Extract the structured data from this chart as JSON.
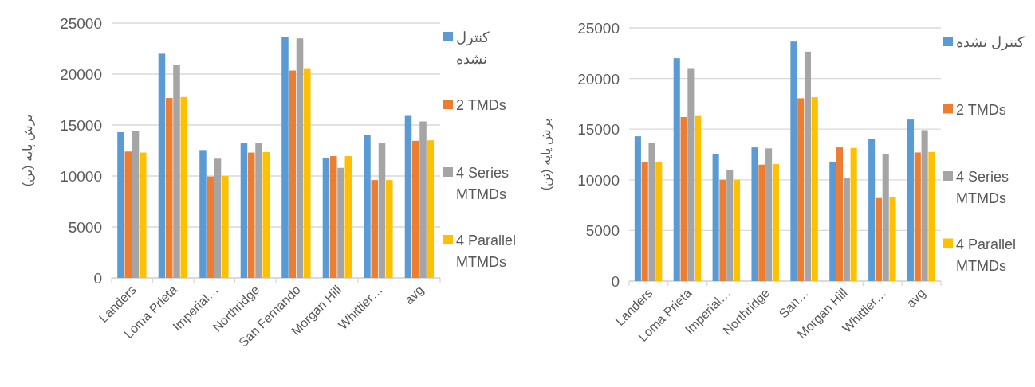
{
  "chart_data": [
    {
      "type": "bar",
      "ylabel": "برش پایه (تن)",
      "categories": [
        "Landers",
        "Loma Prieta",
        "Imperial…",
        "Northridge",
        "San Fernando",
        "Morgan Hill",
        "Whittier…",
        "avg"
      ],
      "ylim": [
        0,
        25000
      ],
      "yticks": [
        0,
        5000,
        10000,
        15000,
        20000,
        25000
      ],
      "grid": "y",
      "legend": "right",
      "series": [
        {
          "name": "کنترل نشده",
          "color": "#5b9bd5",
          "values": [
            14300,
            22000,
            12550,
            13200,
            23600,
            11800,
            14000,
            15900
          ]
        },
        {
          "name": "2 TMDs",
          "color": "#ed7d31",
          "values": [
            12400,
            17650,
            9950,
            12300,
            20350,
            11950,
            9600,
            13450
          ]
        },
        {
          "name": "4 Series MTMDs",
          "color": "#a5a5a5",
          "values": [
            14400,
            20900,
            11700,
            13200,
            23500,
            10800,
            13200,
            15350
          ]
        },
        {
          "name": "4 Parallel MTMDs",
          "color": "#ffc000",
          "values": [
            12300,
            17750,
            10000,
            12350,
            20500,
            11950,
            9600,
            13500
          ]
        }
      ]
    },
    {
      "type": "bar",
      "ylabel": "برش پایه (تن)",
      "categories": [
        "Landers",
        "Loma Prieta",
        "Imperial…",
        "Northridge",
        "San…",
        "Morgan Hill",
        "Whittier…",
        "avg"
      ],
      "ylim": [
        0,
        25000
      ],
      "yticks": [
        0,
        5000,
        10000,
        15000,
        20000,
        25000
      ],
      "grid": "y",
      "legend": "right",
      "series": [
        {
          "name": "کنترل نشده",
          "color": "#5b9bd5",
          "values": [
            14300,
            22000,
            12550,
            13200,
            23650,
            11800,
            14000,
            15950
          ]
        },
        {
          "name": "2 TMDs",
          "color": "#ed7d31",
          "values": [
            11750,
            16200,
            10000,
            11500,
            18050,
            13200,
            8200,
            12700
          ]
        },
        {
          "name": "4 Series MTMDs",
          "color": "#a5a5a5",
          "values": [
            13650,
            20950,
            11000,
            13100,
            22650,
            10200,
            12550,
            14900
          ]
        },
        {
          "name": "4 Parallel MTMDs",
          "color": "#ffc000",
          "values": [
            11800,
            16300,
            10000,
            11550,
            18150,
            13150,
            8300,
            12750
          ]
        }
      ]
    }
  ]
}
